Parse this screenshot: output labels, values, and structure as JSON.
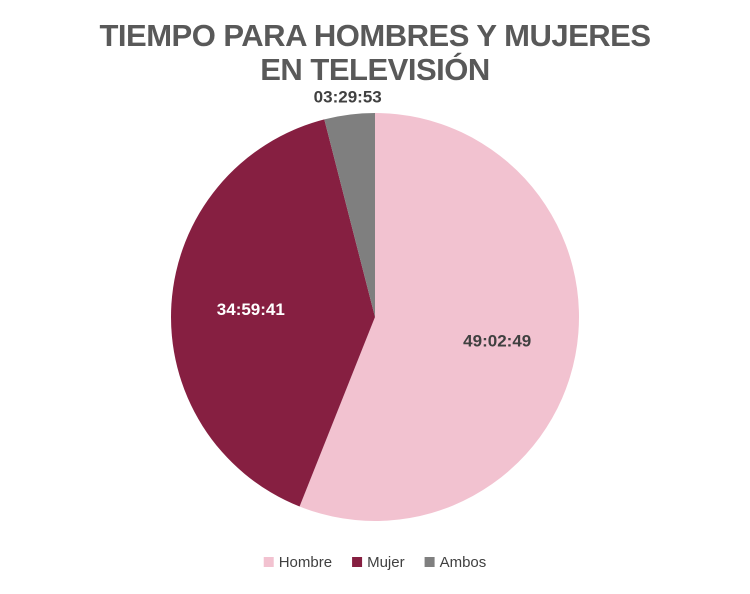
{
  "chart_data": {
    "type": "pie",
    "title_lines": [
      "TIEMPO PARA HOMBRES Y MUJERES",
      "EN TELEVISIÓN"
    ],
    "categories": [
      "Hombre",
      "Mujer",
      "Ambos"
    ],
    "value_labels": [
      "49:02:49",
      "34:59:41",
      "03:29:53"
    ],
    "values_seconds": [
      176569,
      125981,
      12593
    ],
    "colors": [
      "#F2C2D0",
      "#861F41",
      "#7F7F7F"
    ],
    "label_colors": [
      "#404040",
      "#FFFFFF",
      "#404040"
    ],
    "start_angle_deg": 0,
    "direction": "clockwise",
    "legend_position": "bottom"
  }
}
